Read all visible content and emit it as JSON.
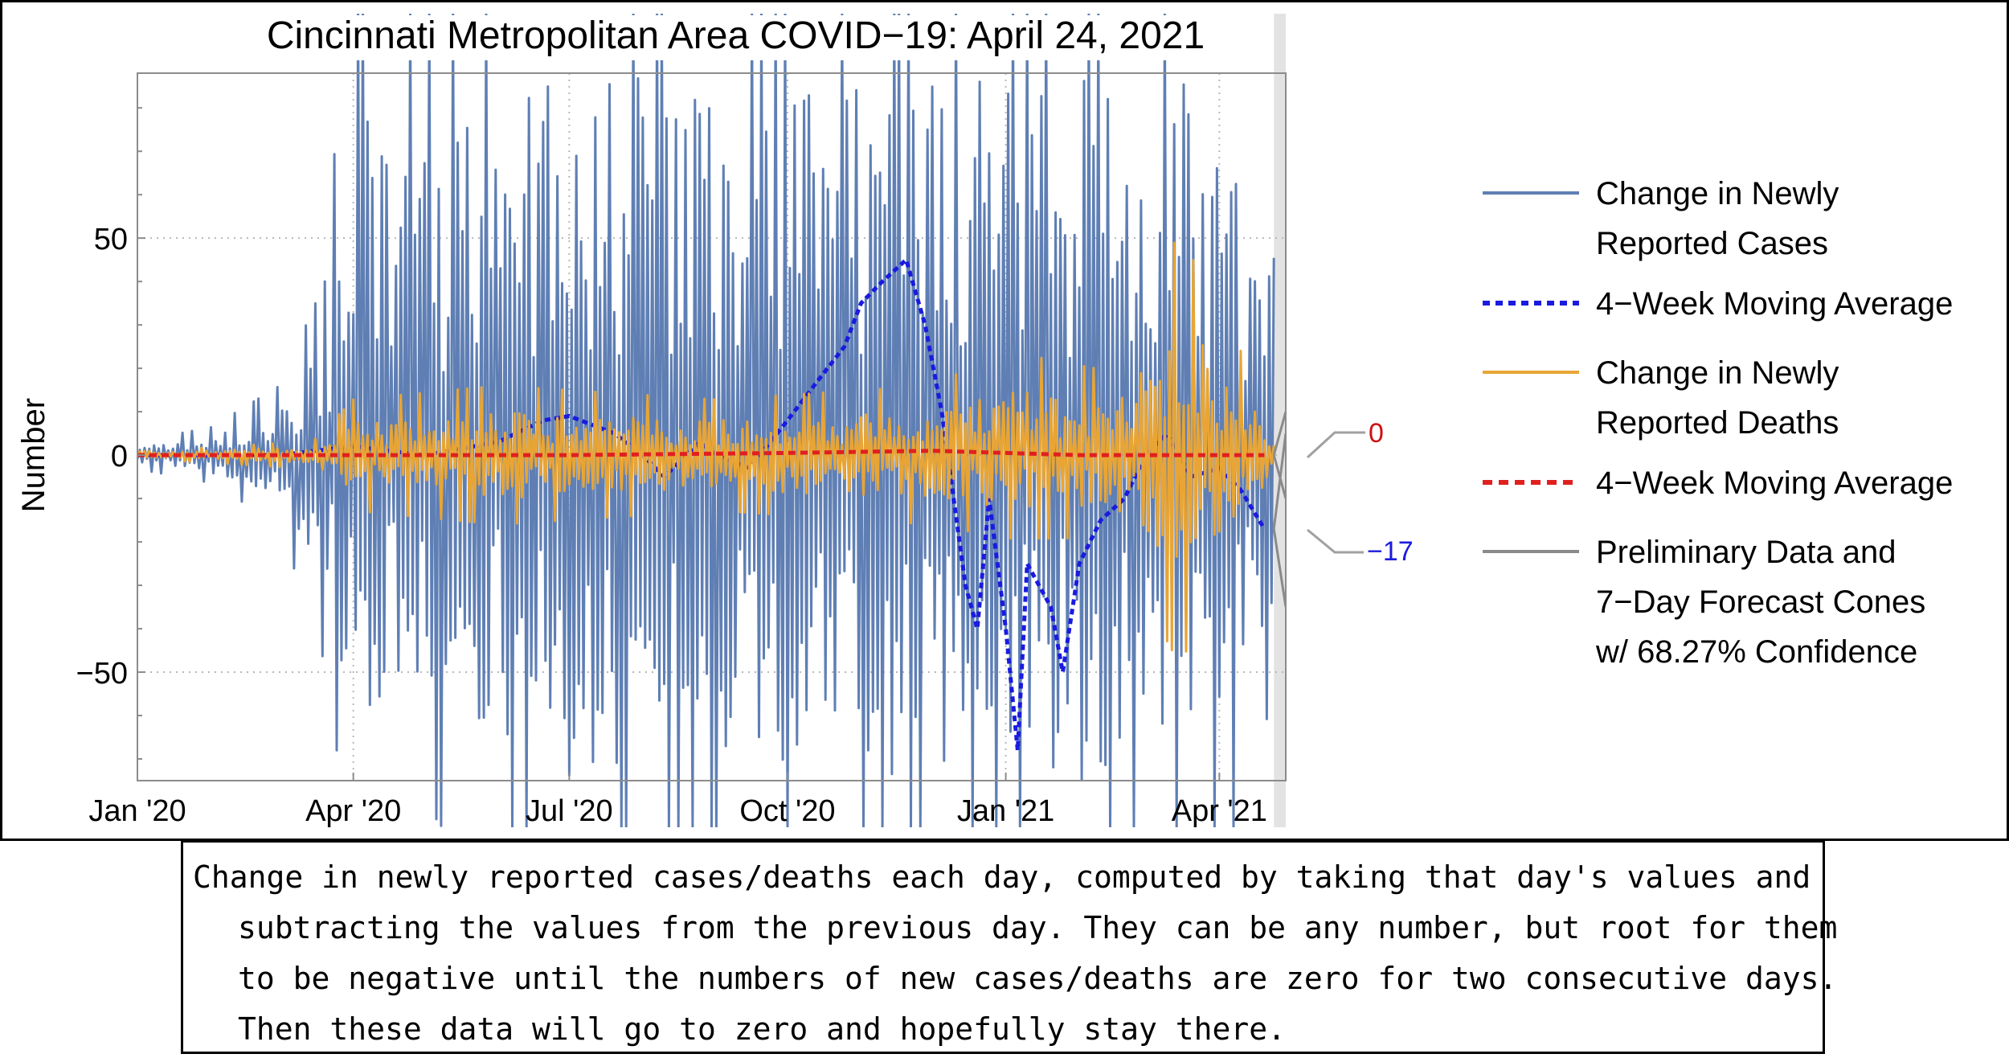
{
  "chart_data": {
    "type": "line",
    "title": "Cincinnati Metropolitan Area COVID−19: April 24, 2021",
    "ylabel": "Number",
    "xlabel": "",
    "ylim": [
      -75,
      88
    ],
    "xlim": [
      "2020-01-01",
      "2021-04-29"
    ],
    "y_ticks": [
      -50,
      0,
      50
    ],
    "y_tick_labels": [
      "−50",
      "0",
      "50"
    ],
    "x_ticks": [
      "2020-01-01",
      "2020-04-01",
      "2020-07-01",
      "2020-10-01",
      "2021-01-01",
      "2021-04-01"
    ],
    "x_tick_labels": [
      "Jan '20",
      "Apr '20",
      "Jul '20",
      "Oct '20",
      "Jan '21",
      "Apr '21"
    ],
    "grid": "dotted at ticks",
    "legend_placement": "right",
    "preliminary_region": [
      "2021-04-24",
      "2021-04-29"
    ],
    "series": [
      {
        "name": "Change in Newly Reported Cases",
        "color": "#5f7fb4",
        "style": "solid",
        "envelope": [
          [
            "2020-01-01",
            2,
            -2
          ],
          [
            "2020-02-01",
            4,
            -4
          ],
          [
            "2020-03-01",
            10,
            -10
          ],
          [
            "2020-03-20",
            25,
            -30
          ],
          [
            "2020-04-01",
            80,
            -60
          ],
          [
            "2020-05-01",
            70,
            -50
          ],
          [
            "2020-06-01",
            85,
            -65
          ],
          [
            "2020-07-01",
            88,
            -75
          ],
          [
            "2020-08-01",
            88,
            -75
          ],
          [
            "2020-09-01",
            88,
            -75
          ],
          [
            "2020-10-01",
            88,
            -75
          ],
          [
            "2021-01-01",
            88,
            -75
          ],
          [
            "2021-02-15",
            88,
            -75
          ],
          [
            "2021-03-15",
            88,
            -75
          ],
          [
            "2021-04-24",
            50,
            -60
          ]
        ]
      },
      {
        "name": "4−Week Moving Average",
        "color": "#1a1ae0",
        "style": "dotted",
        "points": [
          [
            "2020-01-01",
            0
          ],
          [
            "2020-02-01",
            0
          ],
          [
            "2020-03-01",
            0
          ],
          [
            "2020-04-01",
            2
          ],
          [
            "2020-05-01",
            0
          ],
          [
            "2020-06-01",
            3
          ],
          [
            "2020-06-20",
            8
          ],
          [
            "2020-07-01",
            9
          ],
          [
            "2020-07-20",
            5
          ],
          [
            "2020-08-01",
            0
          ],
          [
            "2020-08-10",
            -5
          ],
          [
            "2020-08-25",
            3
          ],
          [
            "2020-09-01",
            0
          ],
          [
            "2020-09-15",
            -3
          ],
          [
            "2020-10-01",
            8
          ],
          [
            "2020-10-15",
            18
          ],
          [
            "2020-10-25",
            25
          ],
          [
            "2020-11-01",
            35
          ],
          [
            "2020-11-10",
            40
          ],
          [
            "2020-11-20",
            45
          ],
          [
            "2020-11-28",
            30
          ],
          [
            "2020-12-05",
            10
          ],
          [
            "2020-12-10",
            -10
          ],
          [
            "2020-12-15",
            -30
          ],
          [
            "2020-12-20",
            -40
          ],
          [
            "2020-12-25",
            -10
          ],
          [
            "2021-01-01",
            -40
          ],
          [
            "2021-01-06",
            -68
          ],
          [
            "2021-01-10",
            -25
          ],
          [
            "2021-01-15",
            -30
          ],
          [
            "2021-01-20",
            -35
          ],
          [
            "2021-01-25",
            -50
          ],
          [
            "2021-02-01",
            -25
          ],
          [
            "2021-02-10",
            -15
          ],
          [
            "2021-02-20",
            -10
          ],
          [
            "2021-03-01",
            0
          ],
          [
            "2021-03-10",
            5
          ],
          [
            "2021-03-20",
            -5
          ],
          [
            "2021-04-01",
            -3
          ],
          [
            "2021-04-10",
            -8
          ],
          [
            "2021-04-20",
            -17
          ]
        ]
      },
      {
        "name": "Change in Newly Reported Deaths",
        "color": "#e8a535",
        "style": "solid",
        "envelope": [
          [
            "2020-01-01",
            0.5,
            -0.5
          ],
          [
            "2020-03-15",
            2,
            -2
          ],
          [
            "2020-04-01",
            8,
            -8
          ],
          [
            "2020-06-01",
            10,
            -10
          ],
          [
            "2020-09-01",
            8,
            -8
          ],
          [
            "2020-12-01",
            10,
            -10
          ],
          [
            "2021-01-01",
            15,
            -12
          ],
          [
            "2021-02-15",
            12,
            -12
          ],
          [
            "2021-03-15",
            32,
            -30
          ],
          [
            "2021-04-10",
            15,
            -15
          ],
          [
            "2021-04-24",
            5,
            -5
          ]
        ]
      },
      {
        "name": "4−Week Moving Average",
        "color": "#e02020",
        "style": "dashed",
        "points": [
          [
            "2020-01-01",
            0
          ],
          [
            "2020-04-01",
            0
          ],
          [
            "2020-07-01",
            0
          ],
          [
            "2020-10-01",
            0.5
          ],
          [
            "2020-12-01",
            1
          ],
          [
            "2021-01-01",
            0.5
          ],
          [
            "2021-02-01",
            0
          ],
          [
            "2021-03-01",
            0
          ],
          [
            "2021-04-01",
            0
          ],
          [
            "2021-04-20",
            0
          ]
        ]
      },
      {
        "name": "Preliminary Data and 7−Day Forecast Cones w/ 68.27% Confidence",
        "color": "#8a8a8a",
        "style": "solid",
        "cones": [
          {
            "center": [
              [
                "2021-04-24",
                0
              ],
              [
                "2021-04-29",
                0
              ]
            ],
            "upper": [
              [
                "2021-04-24",
                0
              ],
              [
                "2021-04-29",
                10
              ]
            ],
            "lower": [
              [
                "2021-04-24",
                0
              ],
              [
                "2021-04-29",
                -10
              ]
            ]
          },
          {
            "center": [
              [
                "2021-04-24",
                -17
              ],
              [
                "2021-04-29",
                -17
              ]
            ],
            "upper": [
              [
                "2021-04-24",
                -17
              ],
              [
                "2021-04-29",
                5
              ]
            ],
            "lower": [
              [
                "2021-04-24",
                -17
              ],
              [
                "2021-04-29",
                -35
              ]
            ]
          }
        ]
      }
    ],
    "end_labels": [
      {
        "text": "0",
        "value": 0,
        "color": "#d01010"
      },
      {
        "text": "−17",
        "value": -17,
        "color": "#1a1ae0"
      }
    ],
    "legend": [
      {
        "lines": [
          "Change in Newly",
          "Reported Cases"
        ],
        "color": "#5f7fb4",
        "style": "solid"
      },
      {
        "lines": [
          "4−Week Moving Average"
        ],
        "color": "#1a1ae0",
        "style": "dotted"
      },
      {
        "lines": [
          "Change in Newly",
          "Reported Deaths"
        ],
        "color": "#e8a535",
        "style": "solid"
      },
      {
        "lines": [
          "4−Week Moving Average"
        ],
        "color": "#e02020",
        "style": "dashed"
      },
      {
        "lines": [
          "Preliminary Data and",
          "7−Day Forecast Cones",
          "w/ 68.27% Confidence"
        ],
        "color": "#8a8a8a",
        "style": "solid"
      }
    ]
  },
  "caption": "Change in newly reported cases/deaths each day, computed by taking that day's values and subtracting the values from the previous day. They can be any number, but root for them to be negative until the numbers of new cases/deaths are zero for two consecutive days. Then these data will go to zero and hopefully stay there."
}
